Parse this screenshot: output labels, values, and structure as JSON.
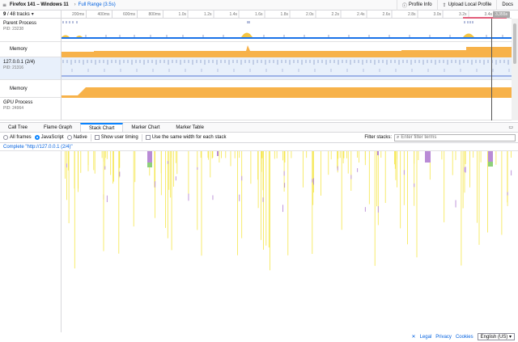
{
  "topbar": {
    "profile_name": "Firefox 141 – Windows 11",
    "range": "Full Range (3.5s)",
    "profile_info": "Profile Info",
    "upload": "Upload Local Profile",
    "docs": "Docs"
  },
  "timeline": {
    "track_count_visible": "9",
    "track_count_total": "/ 48 tracks",
    "ticks": [
      "200ms",
      "400ms",
      "600ms",
      "800ms",
      "1.0s",
      "1.2s",
      "1.4s",
      "1.6s",
      "1.8s",
      "2.0s",
      "2.2s",
      "2.4s",
      "2.6s",
      "2.8s",
      "3.0s",
      "3.2s",
      "3.4s"
    ],
    "selection_badge": "3,355s"
  },
  "tracks": [
    {
      "name": "Parent Process",
      "pid": "PID: 23238"
    },
    {
      "name": "Memory"
    },
    {
      "name": "127.0.0.1 (2/4)",
      "pid": "PID: 21316"
    },
    {
      "name": "Memory"
    },
    {
      "name": "GPU Process",
      "pid": "PID: 24964"
    }
  ],
  "tabs": [
    "Call Tree",
    "Flame Graph",
    "Stack Chart",
    "Marker Chart",
    "Marker Table"
  ],
  "active_tab": "Stack Chart",
  "settings": {
    "all_frames": "All frames",
    "javascript": "JavaScript",
    "native": "Native",
    "show_user_timing": "Show user timing",
    "same_width": "Use the same width for each stack",
    "filter_label": "Filter stacks:",
    "filter_placeholder": "Enter filter terms"
  },
  "breadcrumb": "Complete \"http://127.0.0.1 (2/4)\"",
  "footer": {
    "legal": "Legal",
    "privacy": "Privacy",
    "cookies": "Cookies",
    "language": "English (US)"
  },
  "colors": {
    "accent": "#0a84ff",
    "memory": "#f7b24a",
    "js_yellow": "#f5e64a",
    "purple": "#b98bd6",
    "green": "#8ed07a",
    "selection": "#e25d7a"
  }
}
